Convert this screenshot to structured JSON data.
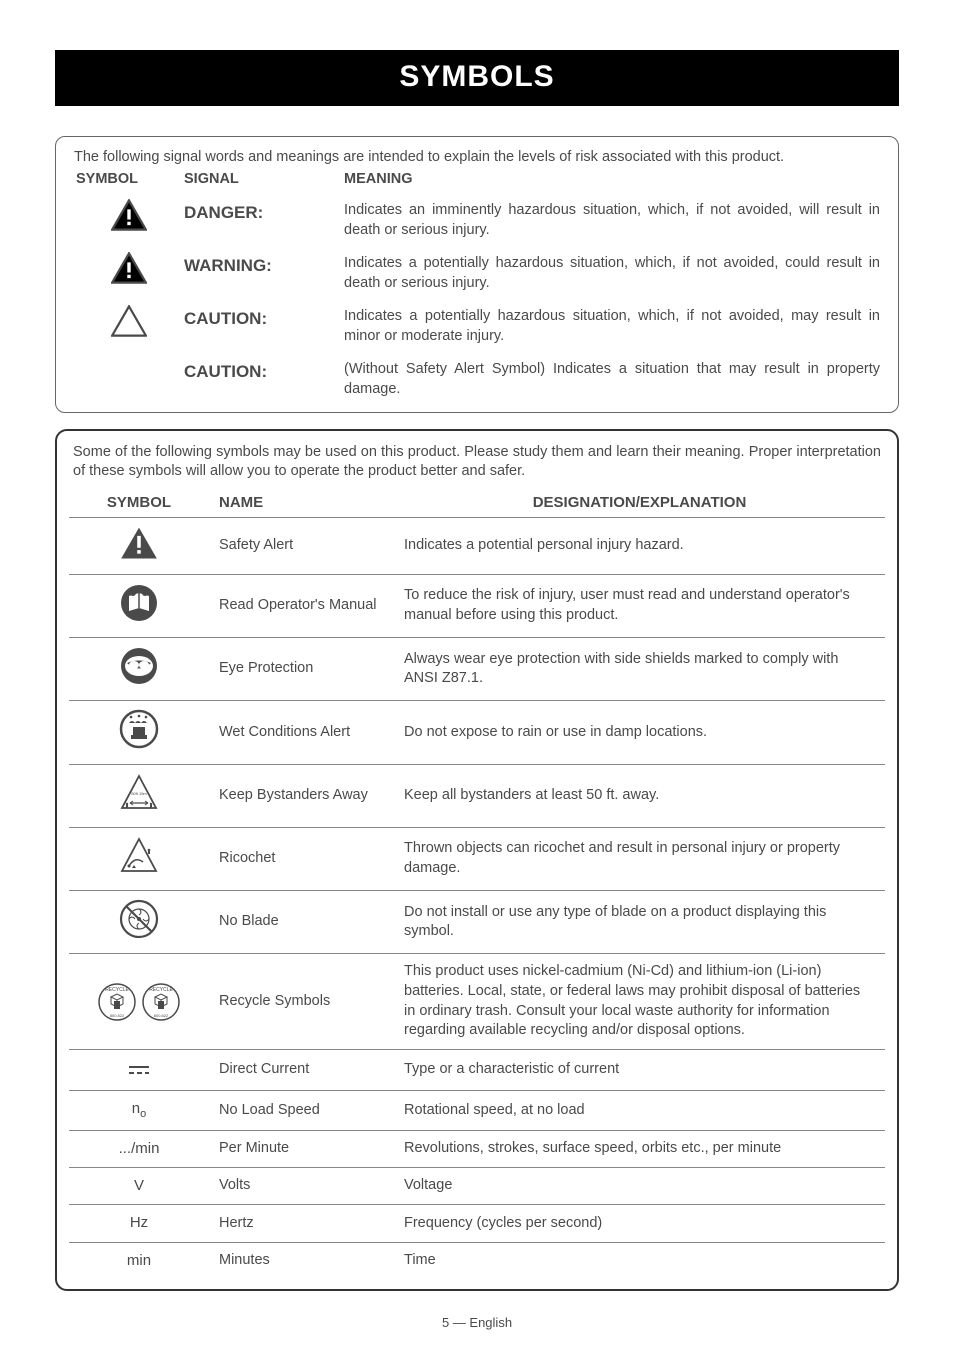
{
  "title": "SYMBOLS",
  "box1": {
    "intro": "The following signal words and meanings are intended to explain the levels of risk associated with this product.",
    "headers": {
      "symbol": "SYMBOL",
      "signal": "SIGNAL",
      "meaning": "MEANING"
    },
    "rows": [
      {
        "has_icon": true,
        "icon_fill": "#000",
        "signal": "DANGER:",
        "meaning": "Indicates an imminently hazardous situation, which, if not avoided, will result in death or serious injury."
      },
      {
        "has_icon": true,
        "icon_fill": "#000",
        "signal": "WARNING:",
        "meaning": "Indicates a potentially hazardous situation, which, if not avoided, could result in death or serious injury."
      },
      {
        "has_icon": true,
        "icon_fill": "none",
        "signal": "CAUTION:",
        "meaning": "Indicates a potentially hazardous situation, which, if not avoided, may result in minor or moderate injury."
      },
      {
        "has_icon": false,
        "signal": "CAUTION:",
        "meaning": "(Without Safety Alert Symbol) Indicates a situation that may result in property damage."
      }
    ]
  },
  "box2": {
    "intro": "Some of the following symbols may be used on this product. Please study them and learn their meaning. Proper interpretation of these symbols will allow you to operate the product better and safer.",
    "headers": {
      "symbol": "SYMBOL",
      "name": "NAME",
      "designation": "DESIGNATION/EXPLANATION"
    },
    "rows": [
      {
        "icon": "safety_alert",
        "name": "Safety Alert",
        "des": "Indicates a potential personal injury hazard.",
        "just": false
      },
      {
        "icon": "manual",
        "name": "Read Operator's Manual",
        "des": "To reduce the risk of injury, user must read and understand operator's manual before using this product.",
        "just": true
      },
      {
        "icon": "eye",
        "name": "Eye Protection",
        "des": "Always wear eye protection with side shields marked to comply with ANSI Z87.1.",
        "just": false
      },
      {
        "icon": "wet",
        "name": "Wet Conditions Alert",
        "des": "Do not expose to rain or use in damp locations.",
        "just": false
      },
      {
        "icon": "bystanders",
        "name": "Keep Bystanders Away",
        "des": "Keep all bystanders at least 50 ft. away.",
        "just": false
      },
      {
        "icon": "ricochet",
        "name": "Ricochet",
        "des": "Thrown objects can ricochet and result in personal injury or property damage.",
        "just": false
      },
      {
        "icon": "noblade",
        "name": "No Blade",
        "des": "Do not install or use any type of blade on a product displaying this symbol.",
        "just": true
      },
      {
        "icon": "recycle",
        "name": "Recycle Symbols",
        "des": "This product uses nickel-cadmium (Ni-Cd) and lithium-ion (Li-ion) batteries. Local, state, or federal laws may prohibit disposal of batteries in ordinary trash. Consult your local waste authority for information regarding available recycling and/or disposal options.",
        "just": true
      },
      {
        "icon": "dc",
        "name": "Direct Current",
        "des": "Type or a characteristic of current",
        "just": false
      },
      {
        "icon": "no",
        "name": "No Load Speed",
        "des": "Rotational speed, at no load",
        "just": false
      },
      {
        "icon": "permin",
        "name": "Per Minute",
        "des": "Revolutions, strokes, surface speed, orbits etc., per minute",
        "just": false
      },
      {
        "icon": "v",
        "name": "Volts",
        "des": "Voltage",
        "just": false
      },
      {
        "icon": "hz",
        "name": "Hertz",
        "des": "Frequency (cycles per second)",
        "just": false
      },
      {
        "icon": "min",
        "name": "Minutes",
        "des": "Time",
        "just": false
      }
    ]
  },
  "footer": "5 — English",
  "text_syms": {
    "dc": "⎓",
    "no_n": "n",
    "no_o": "o",
    "permin": ".../min",
    "v": "V",
    "hz": "Hz",
    "min": "min"
  }
}
